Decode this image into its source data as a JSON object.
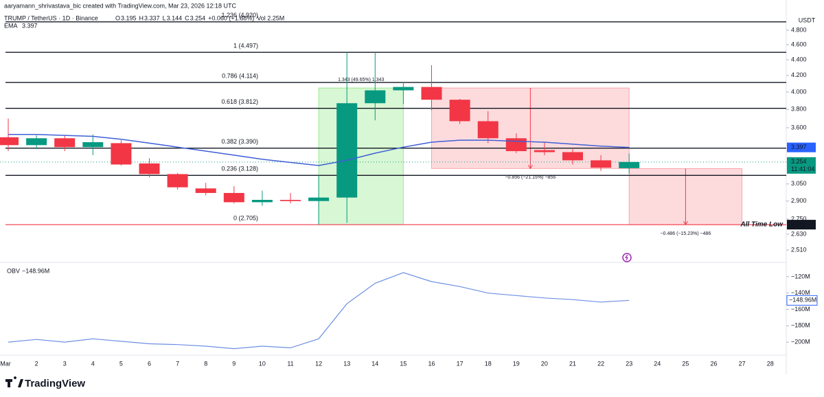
{
  "chart_data": {
    "type": "candlestick",
    "credit": "aaryamann_shrivastava_bic created with TradingView.com, Mar 23, 2026 12:18 UTC",
    "symbol": "TRUMP / TetherUS · 1D · Binance",
    "legend_fields": [
      {
        "label": "O",
        "value": 3.195
      },
      {
        "label": "H",
        "value": 3.337
      },
      {
        "label": "L",
        "value": 3.144
      },
      {
        "label": "C",
        "value": 3.254
      }
    ],
    "change": "+0.060 (+1.88%)",
    "volume": "Vol 2.25M",
    "currency": "USDT",
    "countdown": "11:41:04",
    "brand": "TradingView",
    "log_scale": true,
    "up_color": "#089981",
    "down_color": "#f23645",
    "categories": [
      "Mar",
      "2",
      "3",
      "4",
      "5",
      "6",
      "7",
      "8",
      "9",
      "10",
      "11",
      "12",
      "13",
      "14",
      "15",
      "16",
      "17",
      "18",
      "19",
      "20",
      "21",
      "22",
      "23",
      "24",
      "25",
      "26",
      "27",
      "28"
    ],
    "open": [
      3.5,
      3.42,
      3.49,
      3.4,
      3.44,
      3.24,
      3.14,
      3.01,
      2.97,
      2.89,
      2.91,
      2.9,
      2.93,
      3.87,
      4.02,
      4.06,
      3.91,
      3.67,
      3.49,
      3.37,
      3.35,
      3.27,
      3.195,
      null,
      null,
      null,
      null,
      null
    ],
    "high": [
      3.7,
      3.52,
      3.52,
      3.53,
      3.47,
      3.29,
      3.15,
      3.06,
      3.03,
      2.99,
      2.97,
      3.13,
      4.497,
      4.497,
      4.12,
      4.33,
      3.92,
      3.78,
      3.54,
      3.45,
      3.38,
      3.32,
      3.337,
      null,
      null,
      null,
      null,
      null
    ],
    "low": [
      3.36,
      3.38,
      3.36,
      3.32,
      3.22,
      3.11,
      3.0,
      2.95,
      2.88,
      2.86,
      2.88,
      2.705,
      2.72,
      3.68,
      3.86,
      3.79,
      3.64,
      3.44,
      3.34,
      3.32,
      3.23,
      3.17,
      3.144,
      null,
      null,
      null,
      null,
      null
    ],
    "close": [
      3.42,
      3.49,
      3.4,
      3.45,
      3.23,
      3.14,
      3.02,
      2.97,
      2.89,
      2.91,
      2.9,
      2.93,
      3.87,
      4.02,
      4.06,
      3.91,
      3.67,
      3.49,
      3.36,
      3.35,
      3.27,
      3.2,
      3.254,
      null,
      null,
      null,
      null,
      null
    ],
    "ema": {
      "name": "EMA",
      "color": "#3f5fd6",
      "last_label": 3.397,
      "values": [
        3.53,
        3.53,
        3.52,
        3.51,
        3.48,
        3.44,
        3.4,
        3.36,
        3.32,
        3.28,
        3.25,
        3.22,
        3.27,
        3.34,
        3.4,
        3.45,
        3.47,
        3.47,
        3.46,
        3.45,
        3.43,
        3.41,
        3.397,
        null,
        null,
        null,
        null,
        null
      ]
    },
    "ylim": [
      2.43,
      5.247
    ],
    "yticks": [
      {
        "value": 4.8,
        "label": "4.800"
      },
      {
        "value": 4.6,
        "label": "4.600"
      },
      {
        "value": 4.4,
        "label": "4.400"
      },
      {
        "value": 4.2,
        "label": "4.200"
      },
      {
        "value": 4.0,
        "label": "4.000"
      },
      {
        "value": 3.8,
        "label": "3.800"
      },
      {
        "value": 3.6,
        "label": "3.600"
      },
      {
        "value": 3.05,
        "label": "3.050"
      },
      {
        "value": 2.9,
        "label": "2.900"
      },
      {
        "value": 2.75,
        "label": "2.750"
      },
      {
        "value": 2.63,
        "label": "2.630"
      },
      {
        "value": 2.51,
        "label": "2.510"
      }
    ],
    "fib_levels": [
      {
        "label": "1.236 (4.920)",
        "value": 4.92
      },
      {
        "label": "1 (4.497)",
        "value": 4.497
      },
      {
        "label": "0.786 (4.114)",
        "value": 4.114
      },
      {
        "label": "0.618 (3.812)",
        "value": 3.812
      },
      {
        "label": "0.382 (3.390)",
        "value": 3.39
      },
      {
        "label": "0.236 (3.128)",
        "value": 3.128
      },
      {
        "label": "0 (2.705)",
        "value": 2.705
      }
    ],
    "atl_label": "All Time Low",
    "measures": [
      {
        "label": "1.343 (49.65%) 1,343",
        "start": 12,
        "end": 15,
        "from": 2.705,
        "to": 4.048
      },
      {
        "label": "−0.856 (−21.15%) −856",
        "start": 16,
        "end": 23,
        "from": 4.048,
        "to": 3.192
      },
      {
        "label": "−0.486 (−15.23%) −486",
        "start": 23,
        "end": 27,
        "from": 3.191,
        "to": 2.705
      }
    ],
    "obv": {
      "name": "OBV",
      "color": "#6d8fe3",
      "last_label": "−148.96M",
      "values": [
        -200,
        -196.7,
        -200,
        -196,
        -199,
        -202,
        -203,
        -205,
        -208,
        -205,
        -207,
        -196,
        -153,
        -128,
        -115,
        -126,
        -132,
        -140,
        -143,
        -146,
        -148,
        -151,
        -148.96,
        null,
        null,
        null,
        null,
        null
      ],
      "ylim": [
        -214.2,
        -103.3
      ],
      "yticks": [
        {
          "value": -120,
          "label": "−120M"
        },
        {
          "value": -140,
          "label": "−140M"
        },
        {
          "value": -160,
          "label": "−160M"
        },
        {
          "value": -180,
          "label": "−180M"
        },
        {
          "value": -200,
          "label": "−200M"
        }
      ]
    }
  }
}
